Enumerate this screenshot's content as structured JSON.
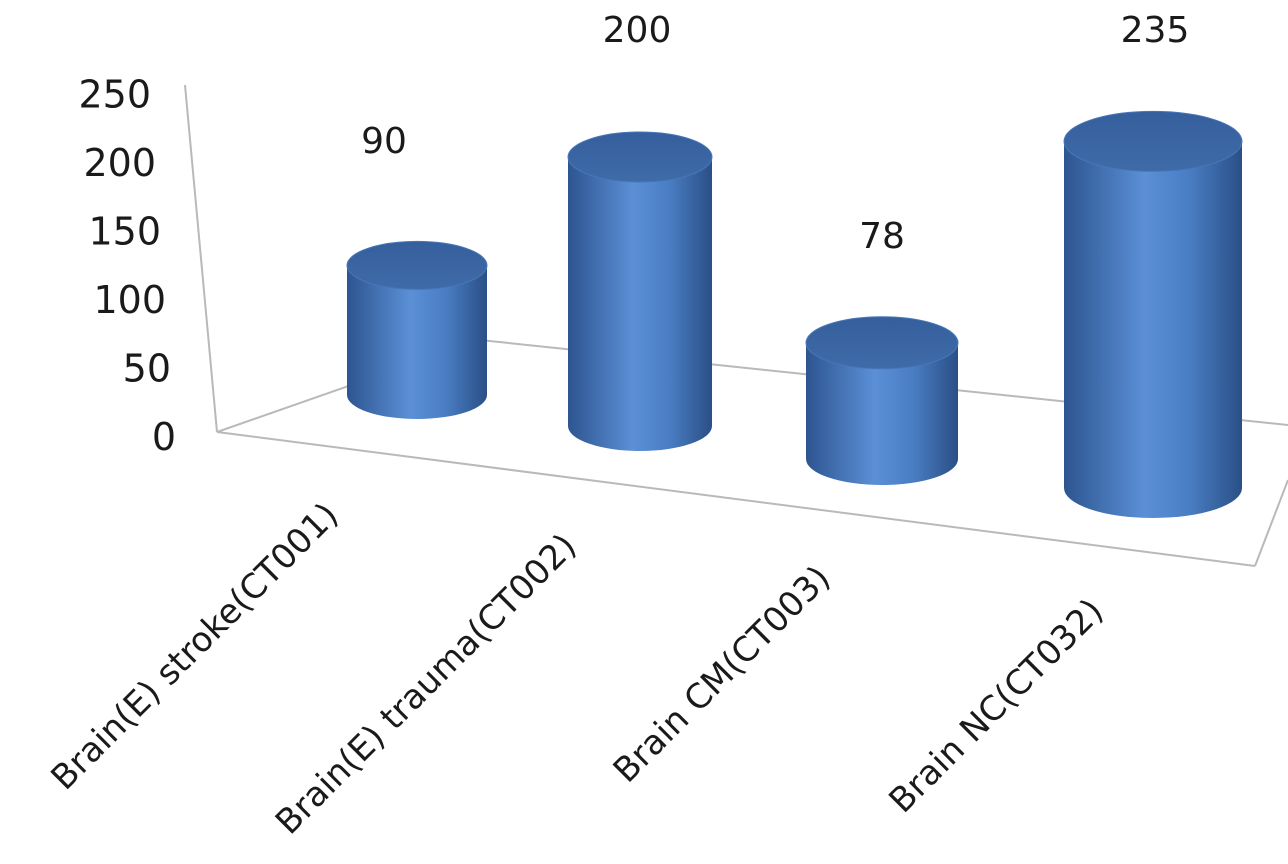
{
  "chart_data": {
    "type": "bar",
    "style": "3d-cylinder",
    "categories": [
      "Brain(E) stroke(CT001)",
      "Brain(E) trauma(CT002)",
      "Brain CM(CT003)",
      "Brain NC(CT032)"
    ],
    "values": [
      90,
      200,
      78,
      235
    ],
    "data_labels": [
      "90",
      "200",
      "78",
      "235"
    ],
    "y_ticks": [
      "0",
      "50",
      "100",
      "150",
      "200",
      "250"
    ],
    "ylim": [
      0,
      250
    ],
    "title": "",
    "xlabel": "",
    "ylabel": "",
    "grid": false,
    "legend": "none",
    "bar_color": "#4f81bd"
  }
}
